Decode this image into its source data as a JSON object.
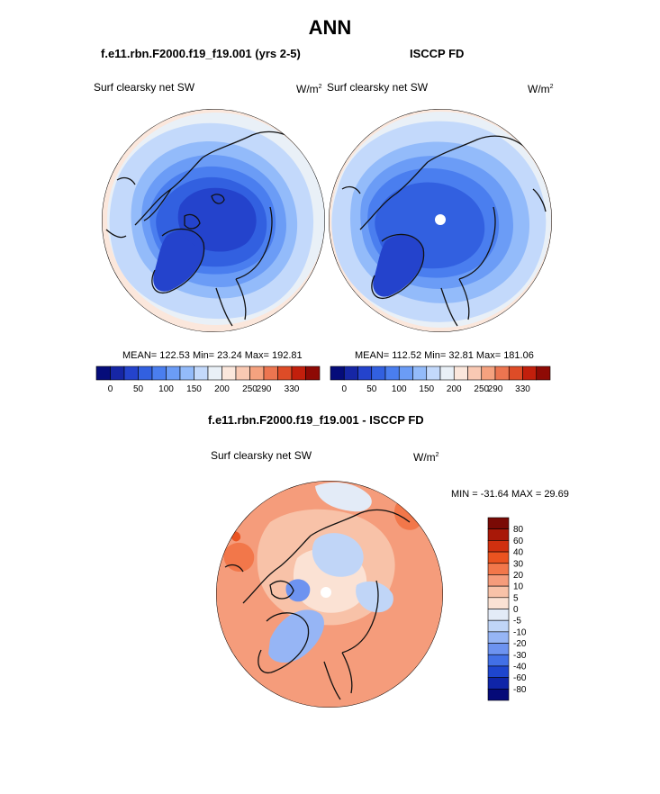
{
  "page": {
    "title": "ANN"
  },
  "panels": [
    {
      "title": "f.e11.rbn.F2000.f19_f19.001 (yrs 2-5)",
      "variable": "Surf clearsky net SW",
      "units_base": "W/m",
      "units_exp": "2",
      "stats": {
        "mean": "122.53",
        "min": "23.24",
        "max": "192.81"
      },
      "stats_text": "MEAN= 122.53  Min=  23.24  Max= 192.81"
    },
    {
      "title": "ISCCP FD",
      "variable": "Surf clearsky net SW",
      "units_base": "W/m",
      "units_exp": "2",
      "stats": {
        "mean": "112.52",
        "min": "32.81",
        "max": "181.06"
      },
      "stats_text": "MEAN= 112.52  Min=  32.81  Max= 181.06"
    },
    {
      "title": "f.e11.rbn.F2000.f19_f19.001 - ISCCP FD",
      "variable": "Surf clearsky net SW",
      "units_base": "W/m",
      "units_exp": "2",
      "stats": {
        "min": "-31.64",
        "max": "29.69"
      },
      "stats_text": "MIN = -31.64 MAX =  29.69"
    }
  ],
  "chart_data": [
    {
      "type": "heatmap",
      "title": "f.e11.rbn.F2000.f19_f19.001 (yrs 2-5)",
      "projection": "polar-stereographic-north",
      "variable": "Surf clearsky net SW",
      "units": "W/m2",
      "stats": {
        "mean": 122.53,
        "min": 23.24,
        "max": 192.81
      },
      "colorbar": {
        "orientation": "horizontal",
        "levels": [
          0,
          25,
          50,
          75,
          100,
          125,
          150,
          175,
          200,
          225,
          250,
          270,
          290,
          310,
          330
        ],
        "tick_labels": [
          "0",
          "50",
          "100",
          "150",
          "200",
          "250",
          "290",
          "330"
        ],
        "colors": [
          "#050c7a",
          "#1626a5",
          "#2443cc",
          "#3260e0",
          "#4a7eef",
          "#6b9cf6",
          "#93bbfa",
          "#c3d9fb",
          "#e9f0f7",
          "#fbe7dc",
          "#f9c9b3",
          "#f5a27f",
          "#ec7550",
          "#de4c27",
          "#c21f0c",
          "#8e0a05"
        ]
      }
    },
    {
      "type": "heatmap",
      "title": "ISCCP FD",
      "projection": "polar-stereographic-north",
      "variable": "Surf clearsky net SW",
      "units": "W/m2",
      "stats": {
        "mean": 112.52,
        "min": 32.81,
        "max": 181.06
      },
      "colorbar": {
        "orientation": "horizontal",
        "levels": [
          0,
          25,
          50,
          75,
          100,
          125,
          150,
          175,
          200,
          225,
          250,
          270,
          290,
          310,
          330
        ],
        "tick_labels": [
          "0",
          "50",
          "100",
          "150",
          "200",
          "250",
          "290",
          "330"
        ],
        "colors": [
          "#050c7a",
          "#1626a5",
          "#2443cc",
          "#3260e0",
          "#4a7eef",
          "#6b9cf6",
          "#93bbfa",
          "#c3d9fb",
          "#e9f0f7",
          "#fbe7dc",
          "#f9c9b3",
          "#f5a27f",
          "#ec7550",
          "#de4c27",
          "#c21f0c",
          "#8e0a05"
        ]
      }
    },
    {
      "type": "heatmap",
      "title": "f.e11.rbn.F2000.f19_f19.001 - ISCCP FD",
      "projection": "polar-stereographic-north",
      "variable": "Surf clearsky net SW",
      "units": "W/m2",
      "stats": {
        "min": -31.64,
        "max": 29.69
      },
      "colorbar": {
        "orientation": "vertical",
        "tick_labels": [
          "80",
          "60",
          "40",
          "30",
          "20",
          "10",
          "5",
          "0",
          "-5",
          "-10",
          "-20",
          "-30",
          "-40",
          "-60",
          "-80"
        ],
        "colors": [
          "#7a0a05",
          "#a81808",
          "#d0300f",
          "#ea5320",
          "#f2774a",
          "#f59c7b",
          "#f8c2a8",
          "#fbe2d4",
          "#e3ebf7",
          "#c0d5f7",
          "#96b5f5",
          "#6d93f0",
          "#4270e6",
          "#1e46cf",
          "#0f25a8",
          "#050a78"
        ]
      }
    }
  ]
}
